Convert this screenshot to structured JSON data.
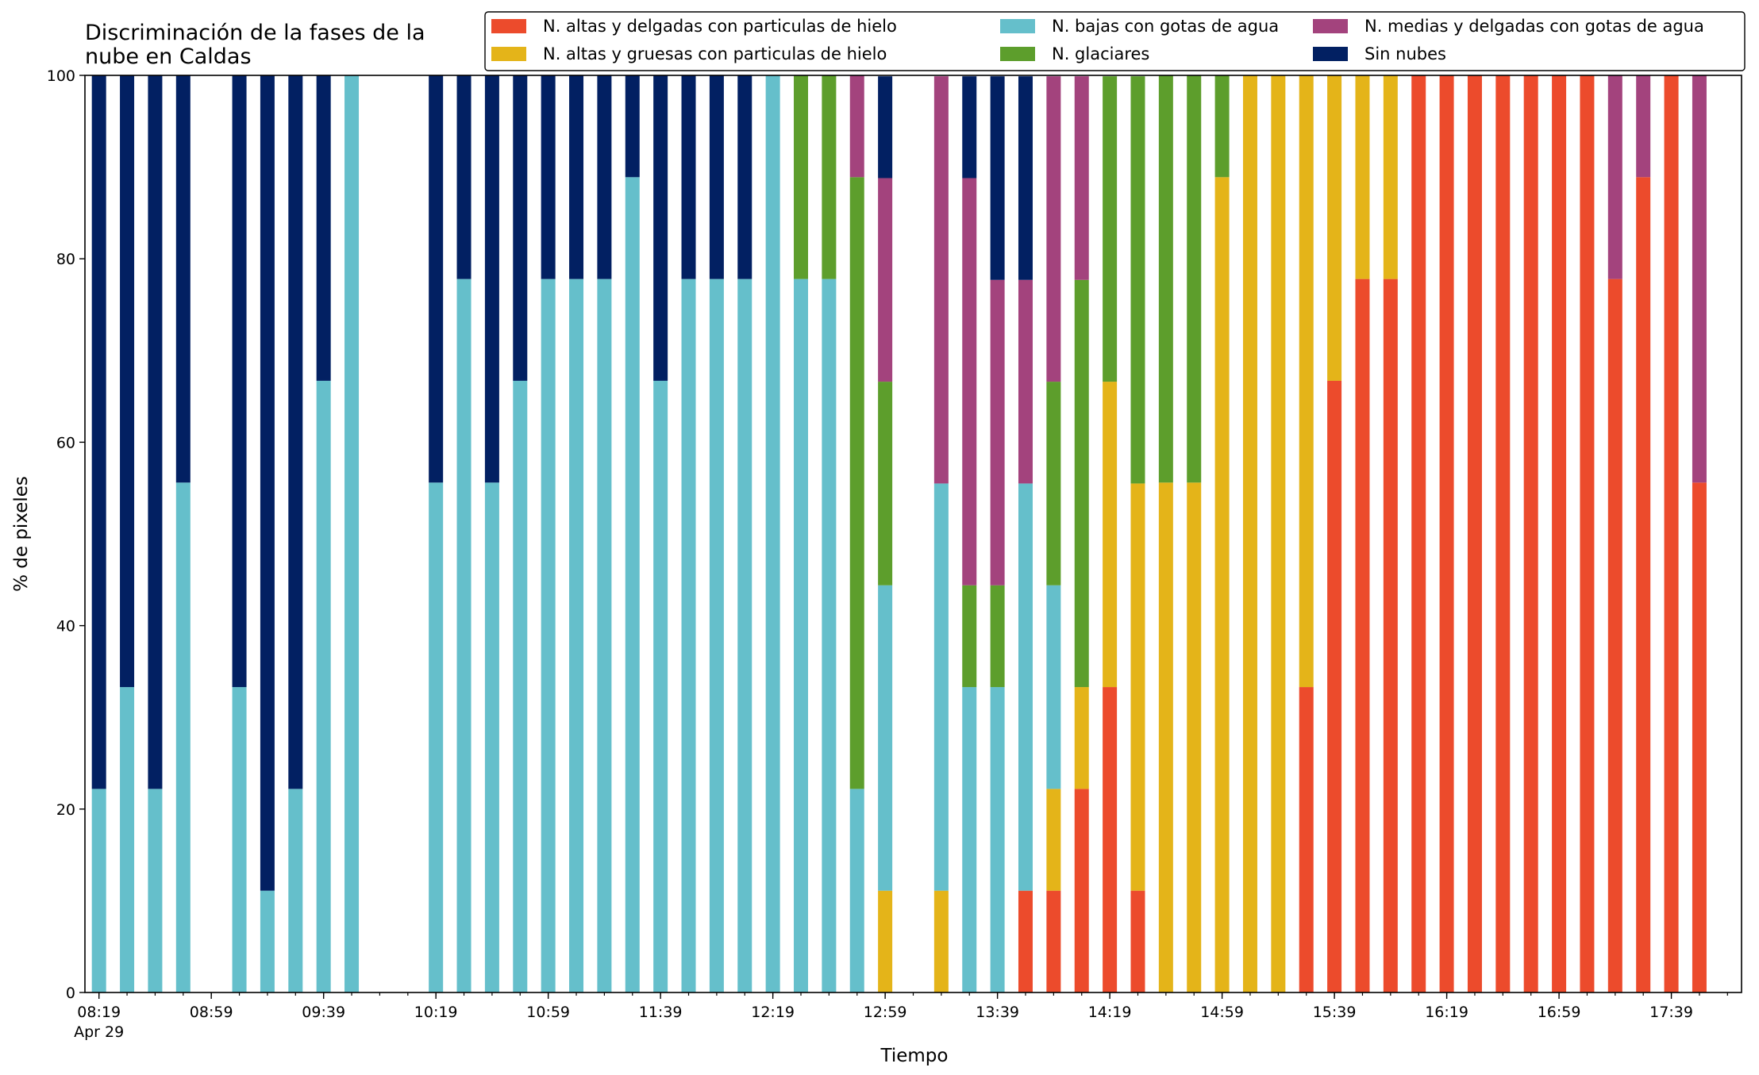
{
  "chart_data": {
    "type": "bar",
    "stacked": true,
    "title": "Discriminación de la fases de la\nnube en Caldas",
    "xlabel": "Tiempo",
    "ylabel": "% de pixeles",
    "ylim": [
      0,
      100
    ],
    "yticks": [
      0,
      20,
      40,
      60,
      80,
      100
    ],
    "xlim": [
      "08:14",
      "18:04"
    ],
    "date_label": "Apr 29",
    "xtick_labels": [
      "08:19",
      "08:59",
      "09:39",
      "10:19",
      "10:59",
      "11:39",
      "12:19",
      "12:59",
      "13:39",
      "14:19",
      "14:59",
      "15:39",
      "16:19",
      "16:59",
      "17:39"
    ],
    "minor_tick_interval_minutes": 10,
    "legend_position": "top-right",
    "legend_columns": 3,
    "series": [
      {
        "name": "N. altas y delgadas con particulas de hielo",
        "color": "#ec4b2c"
      },
      {
        "name": "N. altas y gruesas con particulas de hielo",
        "color": "#e4b419"
      },
      {
        "name": "N. bajas con gotas de agua",
        "color": "#65bfcb"
      },
      {
        "name": "N. glaciares",
        "color": "#5d9e2c"
      },
      {
        "name": "N. medias y delgadas con gotas de agua",
        "color": "#a3437d"
      },
      {
        "name": "Sin nubes",
        "color": "#022062"
      }
    ],
    "bars": [
      {
        "t": "08:19",
        "values": [
          0,
          0,
          22.2,
          0,
          0,
          77.8
        ]
      },
      {
        "t": "08:29",
        "values": [
          0,
          0,
          33.3,
          0,
          0,
          66.7
        ]
      },
      {
        "t": "08:39",
        "values": [
          0,
          0,
          22.2,
          0,
          0,
          77.8
        ]
      },
      {
        "t": "08:49",
        "values": [
          0,
          0,
          55.6,
          0,
          0,
          44.4
        ]
      },
      {
        "t": "09:09",
        "values": [
          0,
          0,
          33.3,
          0,
          0,
          66.7
        ]
      },
      {
        "t": "09:19",
        "values": [
          0,
          0,
          11.1,
          0,
          0,
          88.9
        ]
      },
      {
        "t": "09:29",
        "values": [
          0,
          0,
          22.2,
          0,
          0,
          77.8
        ]
      },
      {
        "t": "09:39",
        "values": [
          0,
          0,
          66.7,
          0,
          0,
          33.3
        ]
      },
      {
        "t": "09:49",
        "values": [
          0,
          0,
          100,
          0,
          0,
          0
        ]
      },
      {
        "t": "10:19",
        "values": [
          0,
          0,
          55.6,
          0,
          0,
          44.4
        ]
      },
      {
        "t": "10:29",
        "values": [
          0,
          0,
          77.8,
          0,
          0,
          22.2
        ]
      },
      {
        "t": "10:39",
        "values": [
          0,
          0,
          55.6,
          0,
          0,
          44.4
        ]
      },
      {
        "t": "10:49",
        "values": [
          0,
          0,
          66.7,
          0,
          0,
          33.3
        ]
      },
      {
        "t": "10:59",
        "values": [
          0,
          0,
          77.8,
          0,
          0,
          22.2
        ]
      },
      {
        "t": "11:09",
        "values": [
          0,
          0,
          77.8,
          0,
          0,
          22.2
        ]
      },
      {
        "t": "11:19",
        "values": [
          0,
          0,
          77.8,
          0,
          0,
          22.2
        ]
      },
      {
        "t": "11:29",
        "values": [
          0,
          0,
          88.9,
          0,
          0,
          11.1
        ]
      },
      {
        "t": "11:39",
        "values": [
          0,
          0,
          66.7,
          0,
          0,
          33.3
        ]
      },
      {
        "t": "11:49",
        "values": [
          0,
          0,
          77.8,
          0,
          0,
          22.2
        ]
      },
      {
        "t": "11:59",
        "values": [
          0,
          0,
          77.8,
          0,
          0,
          22.2
        ]
      },
      {
        "t": "12:09",
        "values": [
          0,
          0,
          77.8,
          0,
          0,
          22.2
        ]
      },
      {
        "t": "12:19",
        "values": [
          0,
          0,
          100,
          0,
          0,
          0
        ]
      },
      {
        "t": "12:29",
        "values": [
          0,
          0,
          77.8,
          22.2,
          0,
          0
        ]
      },
      {
        "t": "12:39",
        "values": [
          0,
          0,
          77.8,
          22.2,
          0,
          0
        ]
      },
      {
        "t": "12:49",
        "values": [
          0,
          0,
          22.2,
          66.7,
          11.1,
          0
        ]
      },
      {
        "t": "12:59",
        "values": [
          0,
          11.1,
          33.3,
          22.2,
          22.2,
          11.1
        ]
      },
      {
        "t": "13:19",
        "values": [
          0,
          11.1,
          44.4,
          0,
          44.4,
          0
        ]
      },
      {
        "t": "13:29",
        "values": [
          0,
          0,
          33.3,
          11.1,
          44.4,
          11.1
        ]
      },
      {
        "t": "13:39",
        "values": [
          0,
          0,
          33.3,
          11.1,
          33.3,
          22.2
        ]
      },
      {
        "t": "13:49",
        "values": [
          11.1,
          0,
          44.4,
          0,
          22.2,
          22.2
        ]
      },
      {
        "t": "13:59",
        "values": [
          11.1,
          11.1,
          22.2,
          22.2,
          33.3,
          0
        ]
      },
      {
        "t": "14:09",
        "values": [
          22.2,
          11.1,
          0,
          44.4,
          22.2,
          0
        ]
      },
      {
        "t": "14:19",
        "values": [
          33.3,
          33.3,
          0,
          33.3,
          0,
          0
        ]
      },
      {
        "t": "14:29",
        "values": [
          11.1,
          44.4,
          0,
          44.4,
          0,
          0
        ]
      },
      {
        "t": "14:39",
        "values": [
          0,
          55.6,
          0,
          44.4,
          0,
          0
        ]
      },
      {
        "t": "14:49",
        "values": [
          0,
          55.6,
          0,
          44.4,
          0,
          0
        ]
      },
      {
        "t": "14:59",
        "values": [
          0,
          88.9,
          0,
          11.1,
          0,
          0
        ]
      },
      {
        "t": "15:09",
        "values": [
          0,
          100,
          0,
          0,
          0,
          0
        ]
      },
      {
        "t": "15:19",
        "values": [
          0,
          100,
          0,
          0,
          0,
          0
        ]
      },
      {
        "t": "15:29",
        "values": [
          33.3,
          66.7,
          0,
          0,
          0,
          0
        ]
      },
      {
        "t": "15:39",
        "values": [
          66.7,
          33.3,
          0,
          0,
          0,
          0
        ]
      },
      {
        "t": "15:49",
        "values": [
          77.8,
          22.2,
          0,
          0,
          0,
          0
        ]
      },
      {
        "t": "15:59",
        "values": [
          77.8,
          22.2,
          0,
          0,
          0,
          0
        ]
      },
      {
        "t": "16:09",
        "values": [
          100,
          0,
          0,
          0,
          0,
          0
        ]
      },
      {
        "t": "16:19",
        "values": [
          100,
          0,
          0,
          0,
          0,
          0
        ]
      },
      {
        "t": "16:29",
        "values": [
          100,
          0,
          0,
          0,
          0,
          0
        ]
      },
      {
        "t": "16:39",
        "values": [
          100,
          0,
          0,
          0,
          0,
          0
        ]
      },
      {
        "t": "16:49",
        "values": [
          100,
          0,
          0,
          0,
          0,
          0
        ]
      },
      {
        "t": "16:59",
        "values": [
          100,
          0,
          0,
          0,
          0,
          0
        ]
      },
      {
        "t": "17:09",
        "values": [
          100,
          0,
          0,
          0,
          0,
          0
        ]
      },
      {
        "t": "17:19",
        "values": [
          77.8,
          0,
          0,
          0,
          22.2,
          0
        ]
      },
      {
        "t": "17:29",
        "values": [
          88.9,
          0,
          0,
          0,
          11.1,
          0
        ]
      },
      {
        "t": "17:39",
        "values": [
          100,
          0,
          0,
          0,
          0,
          0
        ]
      },
      {
        "t": "17:49",
        "values": [
          55.6,
          0,
          0,
          0,
          44.4,
          0
        ]
      }
    ]
  }
}
